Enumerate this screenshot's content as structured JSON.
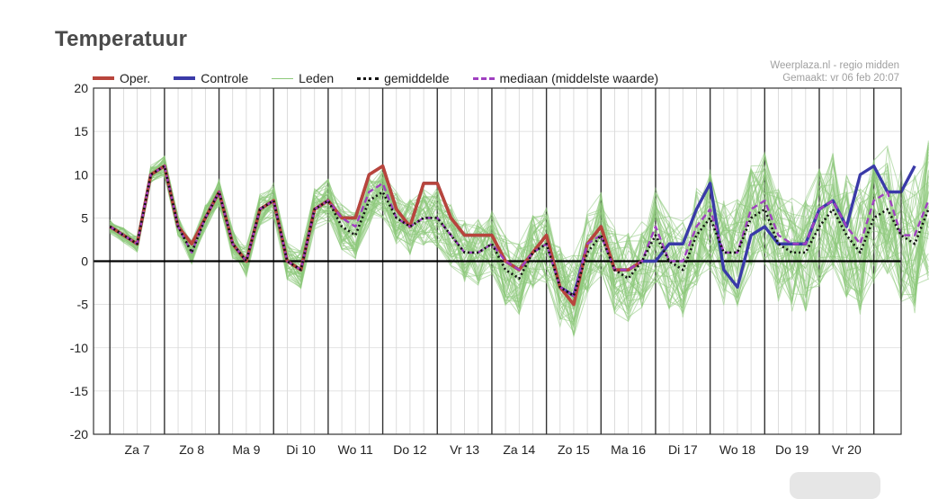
{
  "header": {
    "title": "Temperatuur",
    "credit_line1": "Weerplaza.nl - regio midden",
    "credit_line2": "Gemaakt: vr 06 feb 20:07"
  },
  "legend": [
    {
      "key": "oper",
      "label": "Oper.",
      "color": "#b8453c",
      "style": "solid-thick"
    },
    {
      "key": "controle",
      "label": "Controle",
      "color": "#3a3aa8",
      "style": "solid-thick"
    },
    {
      "key": "leden",
      "label": "Leden",
      "color": "#8cc97a",
      "style": "solid-thin"
    },
    {
      "key": "gemiddelde",
      "label": "gemiddelde",
      "color": "#111111",
      "style": "dotted"
    },
    {
      "key": "mediaan",
      "label": "mediaan (middelste waarde)",
      "color": "#a040c0",
      "style": "dashed"
    }
  ],
  "chart_data": {
    "type": "line",
    "ylim": [
      -20,
      20
    ],
    "yticks": [
      20,
      15,
      10,
      5,
      0,
      -5,
      -10,
      -15,
      -20
    ],
    "day_labels": [
      "Za 7",
      "Zo 8",
      "Ma 9",
      "Di 10",
      "Wo 11",
      "Do 12",
      "Vr 13",
      "Za 14",
      "Zo 15",
      "Ma 16",
      "Di 17",
      "Wo 18",
      "Do 19",
      "Vr 20"
    ],
    "steps_per_day": 4,
    "grid": true,
    "legend_position": "top",
    "series": [
      {
        "key": "oper",
        "values": [
          4,
          3,
          2,
          10,
          11,
          4,
          2,
          5,
          8,
          2,
          0,
          6,
          7,
          0,
          -1,
          6,
          7,
          5,
          5,
          10,
          11,
          6,
          4,
          9,
          9,
          5,
          3,
          3,
          3,
          0,
          -1,
          1,
          3,
          -3,
          -5,
          2,
          4,
          -1,
          -1,
          0
        ]
      },
      {
        "key": "controle",
        "values": [
          4,
          3,
          2,
          10,
          11,
          4,
          2,
          5,
          8,
          2,
          0,
          6,
          7,
          0,
          -1,
          6,
          7,
          5,
          5,
          10,
          11,
          6,
          4,
          9,
          9,
          5,
          3,
          3,
          3,
          0,
          -1,
          1,
          3,
          -3,
          -4,
          2,
          4,
          -1,
          -1,
          0,
          0,
          2,
          2,
          6,
          9,
          -1,
          -3,
          3,
          4,
          2,
          2,
          2,
          6,
          7,
          4,
          10,
          11,
          8,
          8,
          11
        ]
      },
      {
        "key": "gemiddelde",
        "values": [
          4,
          3,
          2,
          10,
          11,
          4,
          1,
          5,
          8,
          2,
          0,
          6,
          7,
          0,
          -1,
          6,
          7,
          4,
          3,
          7,
          8,
          5,
          4,
          5,
          5,
          3,
          1,
          1,
          2,
          -1,
          -2,
          1,
          2,
          -3,
          -4,
          1,
          3,
          -1,
          -2,
          0,
          3,
          0,
          -1,
          3,
          5,
          1,
          1,
          5,
          6,
          2,
          1,
          1,
          4,
          6,
          3,
          1,
          5,
          6,
          3,
          2,
          6
        ]
      },
      {
        "key": "mediaan",
        "values": [
          4,
          3,
          2,
          10,
          11,
          4,
          1,
          5,
          8,
          2,
          0,
          6,
          7,
          0,
          -1,
          6,
          7,
          5,
          4,
          8,
          9,
          5,
          4,
          5,
          5,
          3,
          1,
          1,
          2,
          0,
          -1,
          1,
          2,
          -3,
          -4,
          2,
          3,
          -1,
          -1,
          0,
          4,
          0,
          0,
          4,
          6,
          1,
          1,
          6,
          7,
          3,
          2,
          2,
          6,
          7,
          4,
          2,
          7,
          8,
          3,
          3,
          7
        ]
      }
    ]
  }
}
